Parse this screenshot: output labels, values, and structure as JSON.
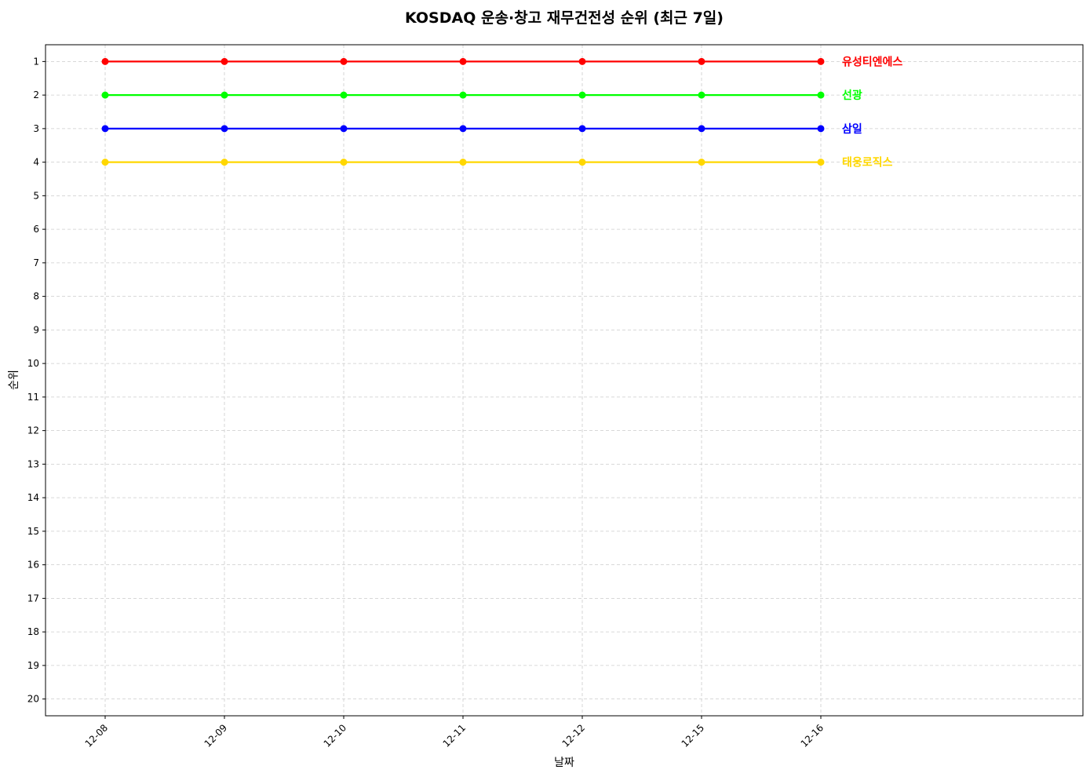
{
  "chart_data": {
    "type": "line",
    "title": "KOSDAQ 운송·창고 재무건전성 순위 (최근 7일)",
    "xlabel": "날짜",
    "ylabel": "순위",
    "categories": [
      "12-08",
      "12-09",
      "12-10",
      "12-11",
      "12-12",
      "12-15",
      "12-16"
    ],
    "yticks": [
      1,
      2,
      3,
      4,
      5,
      6,
      7,
      8,
      9,
      10,
      11,
      12,
      13,
      14,
      15,
      16,
      17,
      18,
      19,
      20
    ],
    "ylim": [
      20.5,
      0.5
    ],
    "y_inverted": true,
    "grid": true,
    "series": [
      {
        "name": "유성티엔에스",
        "color": "#ff0000",
        "values": [
          1,
          1,
          1,
          1,
          1,
          1,
          1
        ]
      },
      {
        "name": "선광",
        "color": "#00ff00",
        "values": [
          2,
          2,
          2,
          2,
          2,
          2,
          2
        ]
      },
      {
        "name": "삼일",
        "color": "#0000ff",
        "values": [
          3,
          3,
          3,
          3,
          3,
          3,
          3
        ]
      },
      {
        "name": "태웅로직스",
        "color": "#ffd700",
        "values": [
          4,
          4,
          4,
          4,
          4,
          4,
          4
        ]
      }
    ]
  }
}
